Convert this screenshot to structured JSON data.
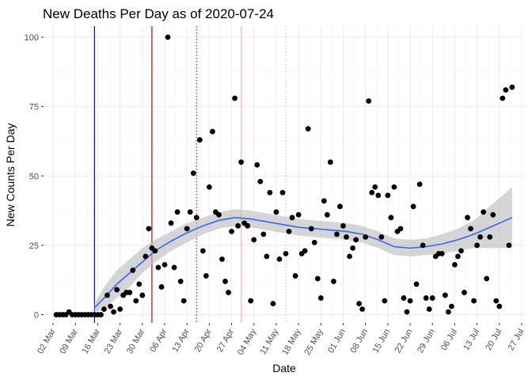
{
  "chart_data": {
    "type": "scatter",
    "title": "New Deaths Per Day as of 2020-07-24",
    "xlabel": "Date",
    "ylabel": "New Counts Per Day",
    "x_ticks": [
      "02 Mar",
      "09 Mar",
      "16 Mar",
      "23 Mar",
      "30 Mar",
      "06 Apr",
      "13 Apr",
      "20 Apr",
      "27 Apr",
      "04 May",
      "11 May",
      "18 May",
      "25 May",
      "01 Jun",
      "08 Jun",
      "15 Jun",
      "22 Jun",
      "29 Jun",
      "06 Jul",
      "13 Jul",
      "20 Jul",
      "27 Jul"
    ],
    "x_range": [
      "2020-02-28",
      "2020-07-28"
    ],
    "y_ticks": [
      0,
      25,
      50,
      75,
      100
    ],
    "ylim": [
      -3,
      104
    ],
    "grid": true,
    "points_color": "#000000",
    "smooth_color": "#3366ff",
    "ribbon_color": "#bfbfbf",
    "reference_lines": [
      {
        "date": "2020-03-15",
        "color": "#0000ff",
        "style": "solid"
      },
      {
        "date": "2020-04-02",
        "color": "#cc0000",
        "style": "solid"
      },
      {
        "date": "2020-04-16",
        "color": "#cc0000",
        "style": "dotted"
      },
      {
        "date": "2020-04-30",
        "color": "#f4b6b6",
        "style": "solid"
      },
      {
        "date": "2020-05-14",
        "color": "#c8c8c8",
        "style": "dotted"
      }
    ],
    "points": [
      [
        "2020-03-03",
        0
      ],
      [
        "2020-03-04",
        0
      ],
      [
        "2020-03-05",
        0
      ],
      [
        "2020-03-06",
        0
      ],
      [
        "2020-03-07",
        1
      ],
      [
        "2020-03-08",
        0
      ],
      [
        "2020-03-09",
        0
      ],
      [
        "2020-03-10",
        0
      ],
      [
        "2020-03-11",
        0
      ],
      [
        "2020-03-12",
        0
      ],
      [
        "2020-03-13",
        0
      ],
      [
        "2020-03-14",
        0
      ],
      [
        "2020-03-15",
        0
      ],
      [
        "2020-03-16",
        0
      ],
      [
        "2020-03-17",
        0
      ],
      [
        "2020-03-18",
        2
      ],
      [
        "2020-03-19",
        7
      ],
      [
        "2020-03-20",
        3
      ],
      [
        "2020-03-21",
        1
      ],
      [
        "2020-03-22",
        9
      ],
      [
        "2020-03-23",
        2
      ],
      [
        "2020-03-24",
        7
      ],
      [
        "2020-03-25",
        8
      ],
      [
        "2020-03-26",
        8
      ],
      [
        "2020-03-27",
        16
      ],
      [
        "2020-03-28",
        5
      ],
      [
        "2020-03-29",
        11
      ],
      [
        "2020-03-30",
        7
      ],
      [
        "2020-03-31",
        21
      ],
      [
        "2020-04-01",
        31
      ],
      [
        "2020-04-02",
        24
      ],
      [
        "2020-04-03",
        23
      ],
      [
        "2020-04-04",
        17
      ],
      [
        "2020-04-05",
        10
      ],
      [
        "2020-04-06",
        18
      ],
      [
        "2020-04-07",
        100
      ],
      [
        "2020-04-08",
        33
      ],
      [
        "2020-04-09",
        17
      ],
      [
        "2020-04-10",
        37
      ],
      [
        "2020-04-11",
        12
      ],
      [
        "2020-04-12",
        5
      ],
      [
        "2020-04-13",
        31
      ],
      [
        "2020-04-14",
        37
      ],
      [
        "2020-04-15",
        51
      ],
      [
        "2020-04-16",
        35
      ],
      [
        "2020-04-17",
        63
      ],
      [
        "2020-04-18",
        23
      ],
      [
        "2020-04-19",
        14
      ],
      [
        "2020-04-20",
        46
      ],
      [
        "2020-04-21",
        66
      ],
      [
        "2020-04-22",
        37
      ],
      [
        "2020-04-23",
        36
      ],
      [
        "2020-04-24",
        20
      ],
      [
        "2020-04-25",
        12
      ],
      [
        "2020-04-26",
        8
      ],
      [
        "2020-04-27",
        30
      ],
      [
        "2020-04-28",
        78
      ],
      [
        "2020-04-29",
        32
      ],
      [
        "2020-04-30",
        55
      ],
      [
        "2020-05-01",
        33
      ],
      [
        "2020-05-02",
        32
      ],
      [
        "2020-05-03",
        5
      ],
      [
        "2020-05-04",
        27
      ],
      [
        "2020-05-05",
        54
      ],
      [
        "2020-05-06",
        48
      ],
      [
        "2020-05-07",
        29
      ],
      [
        "2020-05-08",
        21
      ],
      [
        "2020-05-09",
        44
      ],
      [
        "2020-05-10",
        4
      ],
      [
        "2020-05-11",
        37
      ],
      [
        "2020-05-12",
        20
      ],
      [
        "2020-05-13",
        44
      ],
      [
        "2020-05-14",
        22
      ],
      [
        "2020-05-15",
        30
      ],
      [
        "2020-05-16",
        35
      ],
      [
        "2020-05-17",
        14
      ],
      [
        "2020-05-18",
        36
      ],
      [
        "2020-05-19",
        22
      ],
      [
        "2020-05-20",
        23
      ],
      [
        "2020-05-21",
        67
      ],
      [
        "2020-05-22",
        31
      ],
      [
        "2020-05-23",
        26
      ],
      [
        "2020-05-24",
        13
      ],
      [
        "2020-05-25",
        6
      ],
      [
        "2020-05-26",
        41
      ],
      [
        "2020-05-27",
        36
      ],
      [
        "2020-05-28",
        55
      ],
      [
        "2020-05-29",
        12
      ],
      [
        "2020-05-30",
        29
      ],
      [
        "2020-05-31",
        39
      ],
      [
        "2020-06-01",
        32
      ],
      [
        "2020-06-02",
        28
      ],
      [
        "2020-06-03",
        21
      ],
      [
        "2020-06-04",
        24
      ],
      [
        "2020-06-05",
        27
      ],
      [
        "2020-06-06",
        4
      ],
      [
        "2020-06-07",
        2
      ],
      [
        "2020-06-08",
        28
      ],
      [
        "2020-06-09",
        77
      ],
      [
        "2020-06-10",
        44
      ],
      [
        "2020-06-11",
        46
      ],
      [
        "2020-06-12",
        43
      ],
      [
        "2020-06-13",
        28
      ],
      [
        "2020-06-14",
        5
      ],
      [
        "2020-06-15",
        43
      ],
      [
        "2020-06-16",
        35
      ],
      [
        "2020-06-17",
        46
      ],
      [
        "2020-06-18",
        30
      ],
      [
        "2020-06-19",
        31
      ],
      [
        "2020-06-20",
        6
      ],
      [
        "2020-06-21",
        1
      ],
      [
        "2020-06-22",
        5
      ],
      [
        "2020-06-23",
        39
      ],
      [
        "2020-06-24",
        11
      ],
      [
        "2020-06-25",
        47
      ],
      [
        "2020-06-26",
        25
      ],
      [
        "2020-06-27",
        6
      ],
      [
        "2020-06-28",
        2
      ],
      [
        "2020-06-29",
        6
      ],
      [
        "2020-06-30",
        21
      ],
      [
        "2020-07-01",
        22
      ],
      [
        "2020-07-02",
        22
      ],
      [
        "2020-07-03",
        7
      ],
      [
        "2020-07-04",
        1
      ],
      [
        "2020-07-05",
        3
      ],
      [
        "2020-07-06",
        18
      ],
      [
        "2020-07-07",
        21
      ],
      [
        "2020-07-08",
        23
      ],
      [
        "2020-07-09",
        8
      ],
      [
        "2020-07-10",
        35
      ],
      [
        "2020-07-11",
        31
      ],
      [
        "2020-07-12",
        5
      ],
      [
        "2020-07-13",
        25
      ],
      [
        "2020-07-14",
        28
      ],
      [
        "2020-07-15",
        37
      ],
      [
        "2020-07-16",
        13
      ],
      [
        "2020-07-17",
        28
      ],
      [
        "2020-07-18",
        36
      ],
      [
        "2020-07-19",
        5
      ],
      [
        "2020-07-20",
        3
      ],
      [
        "2020-07-21",
        78
      ],
      [
        "2020-07-22",
        81
      ],
      [
        "2020-07-23",
        25
      ],
      [
        "2020-07-24",
        82
      ]
    ],
    "smooth": [
      [
        "2020-03-15",
        2.5,
        1,
        4
      ],
      [
        "2020-03-18",
        6,
        2,
        10
      ],
      [
        "2020-03-22",
        11,
        6,
        16
      ],
      [
        "2020-03-26",
        15,
        10,
        20
      ],
      [
        "2020-03-30",
        19,
        15,
        24
      ],
      [
        "2020-04-03",
        23,
        19,
        27
      ],
      [
        "2020-04-08",
        26.5,
        23,
        30
      ],
      [
        "2020-04-13",
        29.5,
        26,
        33
      ],
      [
        "2020-04-18",
        32,
        29,
        35
      ],
      [
        "2020-04-23",
        34,
        31,
        37
      ],
      [
        "2020-04-28",
        35,
        32,
        38
      ],
      [
        "2020-05-03",
        34.5,
        31.5,
        37.5
      ],
      [
        "2020-05-08",
        33.5,
        30.5,
        36.5
      ],
      [
        "2020-05-13",
        32.5,
        29.5,
        35.5
      ],
      [
        "2020-05-18",
        31.5,
        28.5,
        34.5
      ],
      [
        "2020-05-23",
        31,
        28,
        34
      ],
      [
        "2020-05-28",
        30.5,
        27.5,
        33.5
      ],
      [
        "2020-06-02",
        30,
        27,
        33
      ],
      [
        "2020-06-07",
        29,
        26,
        32
      ],
      [
        "2020-06-12",
        27,
        24,
        30
      ],
      [
        "2020-06-17",
        24.5,
        21.5,
        27.5
      ],
      [
        "2020-06-22",
        24,
        21,
        27
      ],
      [
        "2020-06-27",
        24.5,
        21.5,
        27.5
      ],
      [
        "2020-07-02",
        25.5,
        22,
        29
      ],
      [
        "2020-07-07",
        27,
        23,
        31
      ],
      [
        "2020-07-12",
        29,
        24,
        34
      ],
      [
        "2020-07-17",
        31.5,
        24,
        39
      ],
      [
        "2020-07-24",
        35,
        24,
        46
      ]
    ]
  }
}
